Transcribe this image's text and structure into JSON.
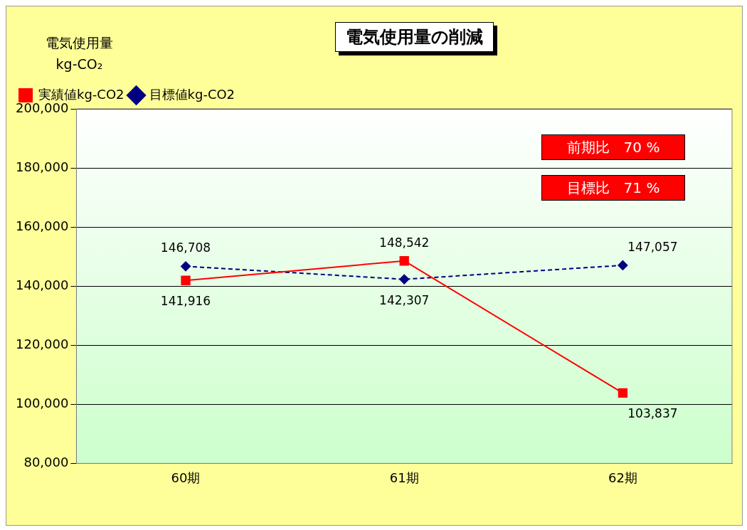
{
  "chart_data": {
    "type": "line",
    "title": "電気使用量の削減",
    "ylabel": "電気使用量 kg-CO₂",
    "categories": [
      "60期",
      "61期",
      "62期"
    ],
    "series": [
      {
        "name": "実績値kg-CO2",
        "color": "#ff0000",
        "values": [
          141916,
          148542,
          103837
        ],
        "value_labels": [
          "141,916",
          "148,542",
          "103,837"
        ],
        "marker": "square",
        "line_style": "solid"
      },
      {
        "name": "目標値kg-CO2",
        "color": "#000080",
        "values": [
          146708,
          142307,
          147057
        ],
        "value_labels": [
          "146,708",
          "142,307",
          "147,057"
        ],
        "marker": "diamond",
        "line_style": "dashed"
      }
    ],
    "ylim": [
      80000,
      200000
    ],
    "yticks": [
      {
        "value": 80000,
        "label": "80,000"
      },
      {
        "value": 100000,
        "label": "100,000"
      },
      {
        "value": 120000,
        "label": "120,000"
      },
      {
        "value": 140000,
        "label": "140,000"
      },
      {
        "value": 160000,
        "label": "160,000"
      },
      {
        "value": 180000,
        "label": "180,000"
      },
      {
        "value": 200000,
        "label": "200,000"
      }
    ],
    "grid": "y",
    "legend": "top left",
    "annotations": [
      "前期比　70 %",
      "目標比　71 %"
    ]
  }
}
